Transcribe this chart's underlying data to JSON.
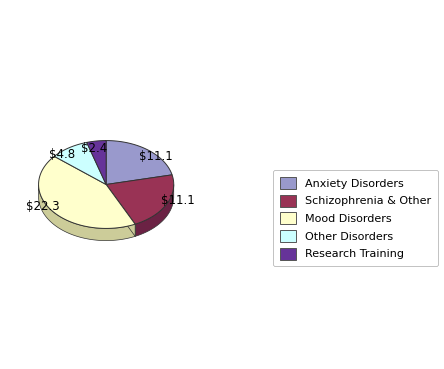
{
  "labels": [
    "Anxiety Disorders",
    "Schizophrenia & Other",
    "Mood Disorders",
    "Other Disorders",
    "Research Training"
  ],
  "values": [
    11.1,
    11.1,
    22.3,
    4.8,
    2.4
  ],
  "colors": [
    "#9999cc",
    "#993355",
    "#ffffcc",
    "#ccffff",
    "#663399"
  ],
  "depth_colors": [
    "#7a7a55",
    "#6b2244",
    "#cccc99",
    "#99cccc",
    "#443366"
  ],
  "shadow_color": "#888866",
  "background_color": "#ffffff",
  "legend_labels": [
    "Anxiety Disorders",
    "Schizophrenia & Other",
    "Mood Disorders",
    "Other Disorders",
    "Research Training"
  ],
  "autopct_labels": [
    "$11.1",
    "$11.1",
    "$22.3",
    "$4.8",
    "$2.4"
  ],
  "startangle": 90
}
